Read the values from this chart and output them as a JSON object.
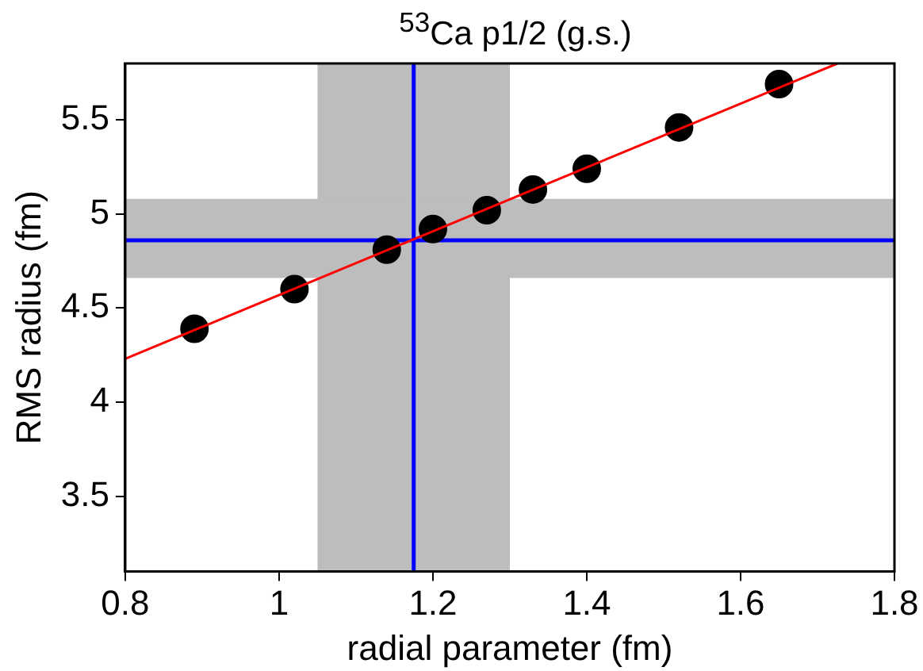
{
  "chart_data": {
    "type": "scatter",
    "title": "$^{53}$Ca p1/2 (g.s.)",
    "xlabel": "radial parameter (fm)",
    "ylabel": "RMS radius (fm)",
    "xlim": [
      0.8,
      1.8
    ],
    "xticks": [
      0.8,
      1,
      1.2,
      1.4,
      1.6,
      1.8
    ],
    "ylim": [
      3.1,
      5.8
    ],
    "yticks": [
      3.5,
      4,
      4.5,
      5,
      5.5
    ],
    "grid": false,
    "legend": false,
    "series": [
      {
        "marker": "circle",
        "color": "#000000",
        "x": [
          0.89,
          1.02,
          1.14,
          1.2,
          1.27,
          1.33,
          1.4,
          1.52,
          1.65
        ],
        "values": [
          4.39,
          4.6,
          4.81,
          4.92,
          5.02,
          5.13,
          5.24,
          5.46,
          5.69
        ]
      },
      {
        "type": "line",
        "marker": "none",
        "color": "#ff0000",
        "x": [
          0.8,
          1.726
        ],
        "values": [
          4.23,
          5.8
        ]
      }
    ],
    "bands": [
      {
        "axis": "x",
        "from": 1.05,
        "to": 1.3,
        "color": "#bdbdbd"
      },
      {
        "axis": "y",
        "from": 4.66,
        "to": 5.08,
        "color": "#bdbdbd"
      }
    ],
    "ref_lines": [
      {
        "axis": "x",
        "value": 1.175,
        "color": "#0000ff"
      },
      {
        "axis": "y",
        "value": 4.86,
        "color": "#0000ff"
      }
    ]
  }
}
